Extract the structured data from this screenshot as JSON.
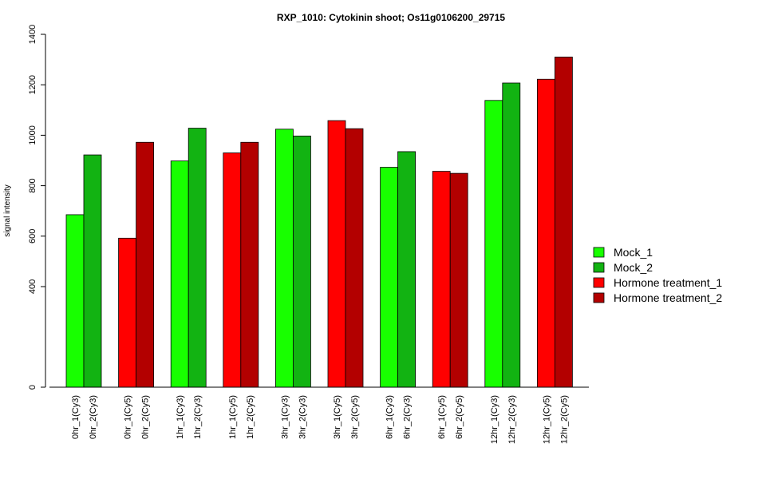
{
  "chart_data": {
    "type": "bar",
    "title": "RXP_1010: Cytokinin shoot; Os11g0106200_29715",
    "xlabel": "",
    "ylabel": "signal intensity",
    "y_ticks": [
      0,
      400,
      600,
      800,
      1000,
      1200,
      1400
    ],
    "y_tick_labels": [
      "0",
      "400",
      "600",
      "800",
      "1000",
      "1200",
      "1400"
    ],
    "ylim": [
      0,
      1400
    ],
    "y_axis_break": {
      "from": 0,
      "to": 400,
      "note": "value 0 drawn at baseline; axis scale continuous from ~200 upward"
    },
    "grid": false,
    "legend_position": "right",
    "legend": [
      {
        "name": "Mock_1",
        "color": "#18ff00"
      },
      {
        "name": "Mock_2",
        "color": "#12b312"
      },
      {
        "name": "Hormone treatment_1",
        "color": "#ff0000"
      },
      {
        "name": "Hormone treatment_2",
        "color": "#b30000"
      }
    ],
    "categories": [
      "0hr_1(Cy3)",
      "0hr_2(Cy3)",
      "0hr_1(Cy5)",
      "0hr_2(Cy5)",
      "1hr_1(Cy3)",
      "1hr_2(Cy3)",
      "1hr_1(Cy5)",
      "1hr_2(Cy5)",
      "3hr_1(Cy3)",
      "3hr_2(Cy3)",
      "3hr_1(Cy5)",
      "3hr_2(Cy5)",
      "6hr_1(Cy3)",
      "6hr_2(Cy3)",
      "6hr_1(Cy5)",
      "6hr_2(Cy5)",
      "12hr_1(Cy3)",
      "12hr_2(Cy3)",
      "12hr_1(Cy5)",
      "12hr_2(Cy5)"
    ],
    "values": [
      685,
      922,
      592,
      972,
      898,
      1028,
      930,
      972,
      1024,
      997,
      1058,
      1026,
      873,
      935,
      857,
      849,
      1138,
      1207,
      1222,
      1310
    ],
    "bar_series": [
      0,
      1,
      2,
      3,
      0,
      1,
      2,
      3,
      0,
      1,
      2,
      3,
      0,
      1,
      2,
      3,
      0,
      1,
      2,
      3
    ]
  }
}
